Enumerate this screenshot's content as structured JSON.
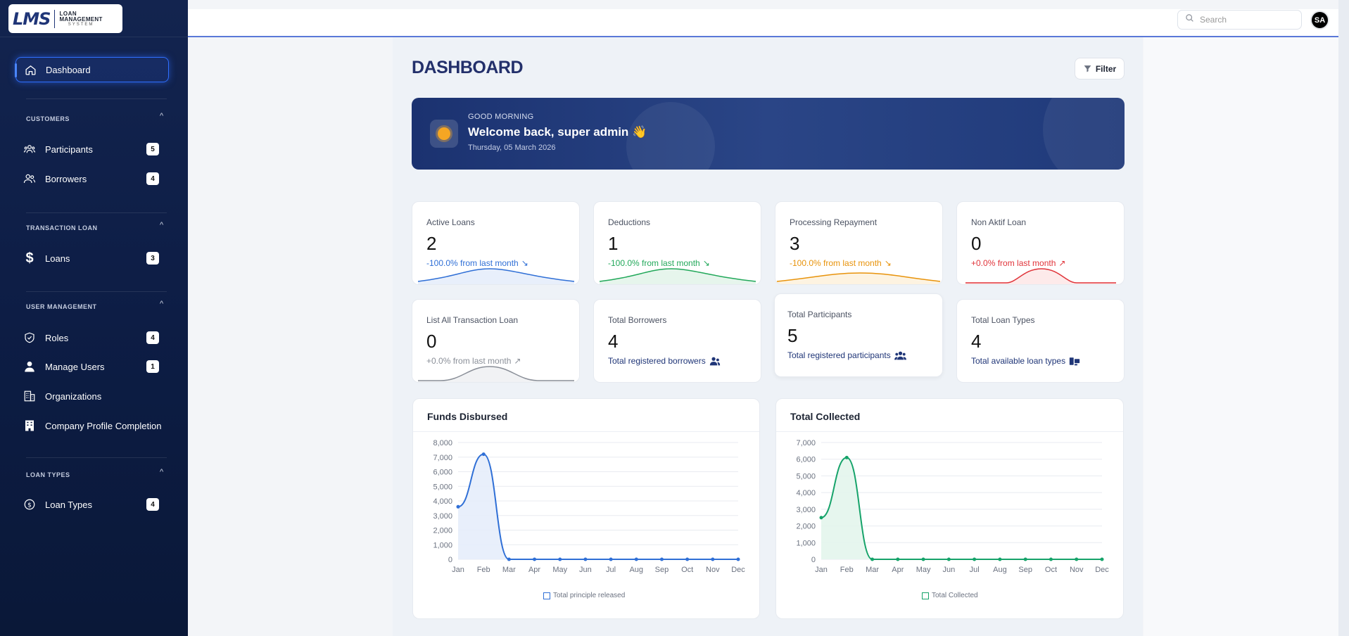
{
  "logo": {
    "mark": "LMS",
    "line1": "LOAN",
    "line2": "MANAGEMENT",
    "line3": "SYSTEM"
  },
  "sidebar": {
    "dashboard": "Dashboard",
    "sections": [
      {
        "label": "CUSTOMERS"
      },
      {
        "label": "TRANSACTION LOAN"
      },
      {
        "label": "USER MANAGEMENT"
      },
      {
        "label": "LOAN TYPES"
      }
    ],
    "items": [
      {
        "label": "Participants",
        "badge": "5",
        "icon": "participants-icon"
      },
      {
        "label": "Borrowers",
        "badge": "4",
        "icon": "borrowers-icon"
      },
      {
        "label": "Loans",
        "badge": "3",
        "icon": "dollar-icon"
      },
      {
        "label": "Roles",
        "badge": "4",
        "icon": "shield-icon"
      },
      {
        "label": "Manage Users",
        "badge": "1",
        "icon": "user-icon"
      },
      {
        "label": "Organizations",
        "badge": "",
        "icon": "building-icon"
      },
      {
        "label": "Company Profile Completion",
        "badge": "",
        "icon": "company-icon"
      },
      {
        "label": "Loan Types",
        "badge": "4",
        "icon": "coin-icon"
      }
    ]
  },
  "topbar": {
    "search_placeholder": "Search",
    "avatar": "SA"
  },
  "page": {
    "title": "DASHBOARD",
    "filter_label": "Filter"
  },
  "welcome": {
    "greeting": "GOOD MORNING",
    "title": "Welcome back, super admin 👋",
    "date": "Thursday, 05 March 2026"
  },
  "stats": [
    {
      "label": "Active Loans",
      "value": "2",
      "sub": "-100.0% from last month",
      "trend": "↘",
      "color": "#2f6fd6"
    },
    {
      "label": "Deductions",
      "value": "1",
      "sub": "-100.0% from last month",
      "trend": "↘",
      "color": "#22a85a"
    },
    {
      "label": "Processing Repayment",
      "value": "3",
      "sub": "-100.0% from last month",
      "trend": "↘",
      "color": "#e8930b"
    },
    {
      "label": "Non Aktif Loan",
      "value": "0",
      "sub": "+0.0% from last month",
      "trend": "↗",
      "color": "#e0343a"
    },
    {
      "label": "List All Transaction Loan",
      "value": "0",
      "sub": "+0.0% from last month",
      "trend": "↗",
      "color": "#8a8f98"
    },
    {
      "label": "Total Borrowers",
      "value": "4",
      "sub": "Total registered borrowers",
      "color": "#1f3577"
    },
    {
      "label": "Total Participants",
      "value": "5",
      "sub": "Total registered participants",
      "color": "#1f3577"
    },
    {
      "label": "Total Loan Types",
      "value": "4",
      "sub": "Total available loan types",
      "color": "#1f3577"
    }
  ],
  "chart_data": [
    {
      "type": "line",
      "title": "Funds Disbursed",
      "categories": [
        "Jan",
        "Feb",
        "Mar",
        "Apr",
        "May",
        "Jun",
        "Jul",
        "Aug",
        "Sep",
        "Oct",
        "Nov",
        "Dec"
      ],
      "series": [
        {
          "name": "Total principle released",
          "values": [
            3600,
            7200,
            0,
            0,
            0,
            0,
            0,
            0,
            0,
            0,
            0,
            0
          ]
        }
      ],
      "yticks": [
        "0",
        "1,000",
        "2,000",
        "3,000",
        "4,000",
        "5,000",
        "6,000",
        "7,000",
        "8,000"
      ],
      "ylim": [
        0,
        8000
      ],
      "color": "#2f6fd6",
      "fill": "#e5edfb",
      "legend": "bottom"
    },
    {
      "type": "line",
      "title": "Total Collected",
      "categories": [
        "Jan",
        "Feb",
        "Mar",
        "Apr",
        "May",
        "Jun",
        "Jul",
        "Aug",
        "Sep",
        "Oct",
        "Nov",
        "Dec"
      ],
      "series": [
        {
          "name": "Total Collected",
          "values": [
            2500,
            6100,
            0,
            0,
            0,
            0,
            0,
            0,
            0,
            0,
            0,
            0
          ]
        }
      ],
      "yticks": [
        "0",
        "1,000",
        "2,000",
        "3,000",
        "4,000",
        "5,000",
        "6,000",
        "7,000"
      ],
      "ylim": [
        0,
        7000
      ],
      "color": "#16a36a",
      "fill": "#e3f5ec",
      "legend": "bottom"
    }
  ]
}
